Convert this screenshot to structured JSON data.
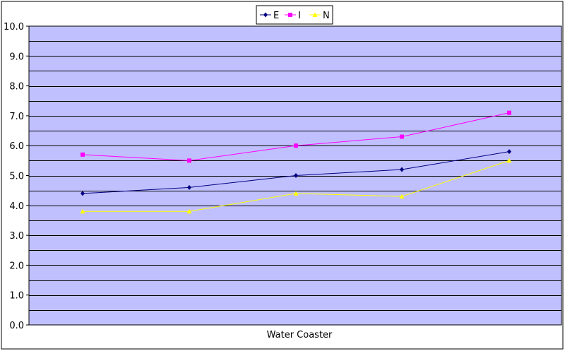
{
  "chart_data": {
    "type": "line",
    "title": "",
    "xlabel": "Water Coaster",
    "ylabel": "",
    "x": [
      1,
      2,
      3,
      4,
      5
    ],
    "ylim": [
      0,
      10
    ],
    "y_tick_labels": [
      "0.0",
      "1.0",
      "2.0",
      "3.0",
      "4.0",
      "5.0",
      "6.0",
      "7.0",
      "8.0",
      "9.0",
      "10.0"
    ],
    "grid": true,
    "legend_position": "top-center",
    "plot_background": "#c0c0ff",
    "series": [
      {
        "name": "E",
        "color": "#000080",
        "marker": "diamond",
        "values": [
          4.4,
          4.6,
          5.0,
          5.2,
          5.8
        ]
      },
      {
        "name": "I",
        "color": "#ff00ff",
        "marker": "square",
        "values": [
          5.7,
          5.5,
          6.0,
          6.3,
          7.1
        ]
      },
      {
        "name": "N",
        "color": "#ffff00",
        "marker": "triangle",
        "values": [
          3.8,
          3.8,
          4.4,
          4.3,
          5.5
        ]
      }
    ]
  }
}
